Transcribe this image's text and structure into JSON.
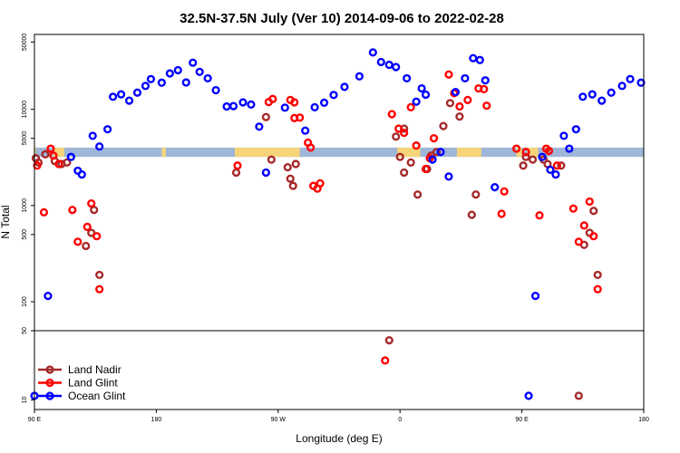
{
  "chart_data": {
    "type": "scatter",
    "title": "32.5N-37.5N July (Ver 10)   2014-09-06 to 2022-02-28",
    "xlabel": "Longitude (deg E)",
    "ylabel": "N Total",
    "x_ticks": [
      {
        "value": 90,
        "label": "90 E"
      },
      {
        "value": 180,
        "label": "180"
      },
      {
        "value": 270,
        "label": "90 W"
      },
      {
        "value": 360,
        "label": "0"
      },
      {
        "value": 450,
        "label": "90 E"
      },
      {
        "value": 540,
        "label": "180"
      }
    ],
    "y_ticks_upper": [
      "100",
      "500",
      "1000",
      "5000",
      "10000",
      "50000"
    ],
    "y_ticks_lower": [
      "10",
      "50"
    ],
    "xlim": [
      90,
      540
    ],
    "ylim_upper": [
      50,
      60000
    ],
    "ylim_lower": [
      8,
      50
    ],
    "y_scale": "log",
    "legend_position": "bottom-left",
    "colors": {
      "land_nadir": "#a52a2a",
      "land_glint": "#ff0000",
      "ocean_glint": "#0000ff",
      "band_land": "#f5d47a",
      "band_ocean": "#9fb6d8"
    },
    "band": {
      "y_range": [
        3200,
        4000
      ],
      "land_segments": [
        [
          90,
          91
        ],
        [
          104,
          112
        ],
        [
          184,
          187
        ],
        [
          238,
          286
        ],
        [
          358,
          375
        ],
        [
          402,
          420
        ],
        [
          446,
          450
        ],
        [
          454,
          462
        ]
      ]
    },
    "series": [
      {
        "name": "Land Nadir",
        "key": "land_nadir",
        "points": [
          [
            91,
            3100
          ],
          [
            93,
            2800
          ],
          [
            98,
            3400
          ],
          [
            105,
            2900
          ],
          [
            110,
            2700
          ],
          [
            114,
            2800
          ],
          [
            128,
            380
          ],
          [
            132,
            520
          ],
          [
            134,
            900
          ],
          [
            138,
            190
          ],
          [
            239,
            2200
          ],
          [
            261,
            8300
          ],
          [
            265,
            3000
          ],
          [
            277,
            2500
          ],
          [
            279,
            1900
          ],
          [
            281,
            1600
          ],
          [
            283,
            2700
          ],
          [
            352,
            40
          ],
          [
            357,
            5200
          ],
          [
            360,
            3200
          ],
          [
            363,
            2200
          ],
          [
            363,
            6300
          ],
          [
            368,
            2800
          ],
          [
            373,
            1300
          ],
          [
            380,
            2400
          ],
          [
            383,
            3300
          ],
          [
            387,
            3600
          ],
          [
            392,
            6700
          ],
          [
            397,
            11600
          ],
          [
            404,
            8400
          ],
          [
            413,
            800
          ],
          [
            416,
            1300
          ],
          [
            451,
            2600
          ],
          [
            453,
            3200
          ],
          [
            458,
            3000
          ],
          [
            466,
            3000
          ],
          [
            469,
            2700
          ],
          [
            479,
            2600
          ],
          [
            492,
            11
          ],
          [
            496,
            390
          ],
          [
            500,
            520
          ],
          [
            503,
            880
          ],
          [
            506,
            190
          ]
        ]
      },
      {
        "name": "Land Glint",
        "key": "land_glint",
        "points": [
          [
            92,
            2600
          ],
          [
            97,
            850
          ],
          [
            102,
            3900
          ],
          [
            104,
            3300
          ],
          [
            108,
            2700
          ],
          [
            118,
            900
          ],
          [
            122,
            420
          ],
          [
            129,
            600
          ],
          [
            132,
            1050
          ],
          [
            136,
            480
          ],
          [
            138,
            135
          ],
          [
            240,
            2600
          ],
          [
            263,
            11900
          ],
          [
            266,
            12800
          ],
          [
            279,
            12500
          ],
          [
            282,
            11800
          ],
          [
            282,
            8100
          ],
          [
            286,
            8200
          ],
          [
            292,
            4500
          ],
          [
            294,
            4000
          ],
          [
            296,
            1600
          ],
          [
            299,
            1500
          ],
          [
            301,
            1700
          ],
          [
            349,
            25
          ],
          [
            354,
            8900
          ],
          [
            359,
            6300
          ],
          [
            363,
            5700
          ],
          [
            368,
            10500
          ],
          [
            372,
            4200
          ],
          [
            379,
            2400
          ],
          [
            382,
            3100
          ],
          [
            385,
            5000
          ],
          [
            396,
            23000
          ],
          [
            400,
            14700
          ],
          [
            404,
            10700
          ],
          [
            410,
            12500
          ],
          [
            418,
            16500
          ],
          [
            422,
            16200
          ],
          [
            424,
            10900
          ],
          [
            435,
            820
          ],
          [
            437,
            1400
          ],
          [
            446,
            3900
          ],
          [
            453,
            3600
          ],
          [
            463,
            790
          ],
          [
            468,
            3900
          ],
          [
            470,
            3700
          ],
          [
            476,
            2600
          ],
          [
            488,
            930
          ],
          [
            492,
            420
          ],
          [
            496,
            620
          ],
          [
            500,
            1100
          ],
          [
            503,
            480
          ],
          [
            506,
            135
          ]
        ]
      },
      {
        "name": "Ocean Glint",
        "key": "ocean_glint",
        "points": [
          [
            90,
            11
          ],
          [
            100,
            115
          ],
          [
            117,
            3200
          ],
          [
            122,
            2300
          ],
          [
            125,
            2100
          ],
          [
            133,
            5300
          ],
          [
            138,
            4100
          ],
          [
            144,
            6200
          ],
          [
            148,
            13500
          ],
          [
            154,
            14300
          ],
          [
            160,
            12300
          ],
          [
            166,
            14900
          ],
          [
            172,
            17500
          ],
          [
            176,
            20600
          ],
          [
            184,
            18900
          ],
          [
            190,
            23600
          ],
          [
            196,
            25500
          ],
          [
            202,
            19000
          ],
          [
            207,
            30500
          ],
          [
            212,
            24500
          ],
          [
            218,
            21000
          ],
          [
            224,
            15800
          ],
          [
            232,
            10700
          ],
          [
            237,
            10800
          ],
          [
            244,
            11800
          ],
          [
            250,
            11200
          ],
          [
            256,
            6600
          ],
          [
            261,
            2200
          ],
          [
            275,
            10400
          ],
          [
            290,
            6000
          ],
          [
            297,
            10500
          ],
          [
            304,
            11700
          ],
          [
            311,
            14100
          ],
          [
            319,
            17100
          ],
          [
            330,
            22000
          ],
          [
            340,
            39000
          ],
          [
            346,
            31000
          ],
          [
            352,
            29000
          ],
          [
            357,
            27500
          ],
          [
            365,
            21000
          ],
          [
            372,
            12000
          ],
          [
            376,
            16500
          ],
          [
            379,
            14200
          ],
          [
            384,
            3000
          ],
          [
            390,
            3600
          ],
          [
            396,
            2000
          ],
          [
            401,
            15100
          ],
          [
            408,
            21000
          ],
          [
            414,
            34000
          ],
          [
            419,
            32500
          ],
          [
            423,
            20000
          ],
          [
            430,
            1550
          ],
          [
            455,
            11
          ],
          [
            460,
            115
          ],
          [
            465,
            3200
          ],
          [
            471,
            2350
          ],
          [
            475,
            2100
          ],
          [
            481,
            5300
          ],
          [
            485,
            3900
          ],
          [
            490,
            6200
          ],
          [
            495,
            13500
          ],
          [
            502,
            14300
          ],
          [
            509,
            12300
          ],
          [
            516,
            14900
          ],
          [
            524,
            17500
          ],
          [
            530,
            20600
          ],
          [
            538,
            18900
          ]
        ]
      }
    ]
  }
}
